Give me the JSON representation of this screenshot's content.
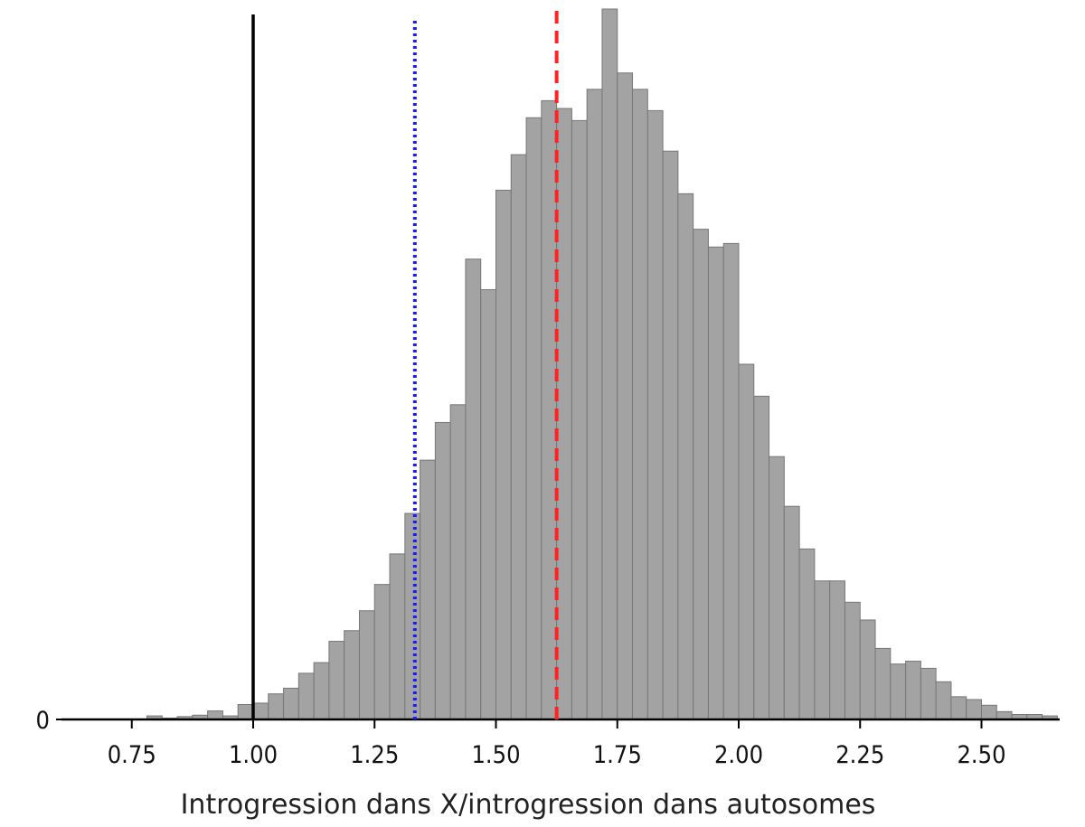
{
  "chart_data": {
    "type": "bar",
    "title": "",
    "xlabel": "Introgression dans X/introgression dans autosomes",
    "ylabel": "",
    "xlim": [
      0.625,
      2.675
    ],
    "ylim": [
      0,
      1
    ],
    "x_ticks": [
      0.75,
      1.0,
      1.25,
      1.5,
      1.75,
      2.0,
      2.25,
      2.5
    ],
    "x_tick_labels": [
      "0.75",
      "1.00",
      "1.25",
      "1.50",
      "1.75",
      "2.00",
      "2.25",
      "2.50"
    ],
    "y_ticks": [
      0
    ],
    "y_tick_labels": [
      "0"
    ],
    "bin_width": 0.03125,
    "bin_start": 0.78125,
    "bar_color": "#a3a3a3",
    "bar_edge_color": "#777777",
    "counts": [
      0.005,
      0.002,
      0.004,
      0.006,
      0.012,
      0.005,
      0.021,
      0.023,
      0.036,
      0.044,
      0.065,
      0.08,
      0.11,
      0.125,
      0.153,
      0.19,
      0.233,
      0.29,
      0.365,
      0.418,
      0.443,
      0.648,
      0.605,
      0.745,
      0.795,
      0.847,
      0.871,
      0.86,
      0.843,
      0.887,
      1.0,
      0.91,
      0.887,
      0.857,
      0.8,
      0.74,
      0.69,
      0.665,
      0.67,
      0.5,
      0.455,
      0.37,
      0.3,
      0.24,
      0.195,
      0.195,
      0.165,
      0.14,
      0.1,
      0.078,
      0.082,
      0.072,
      0.053,
      0.032,
      0.028,
      0.02,
      0.011,
      0.007,
      0.007,
      0.005
    ],
    "reference_lines": [
      {
        "name": "",
        "x": 1.0,
        "color": "#000000",
        "style": "solid"
      },
      {
        "name": "",
        "x": 1.333,
        "color": "#1a1aff",
        "style": "dotted"
      },
      {
        "name": "",
        "x": 1.625,
        "color": "#ff2222",
        "style": "dashed"
      }
    ],
    "grid": false,
    "legend": "none"
  }
}
